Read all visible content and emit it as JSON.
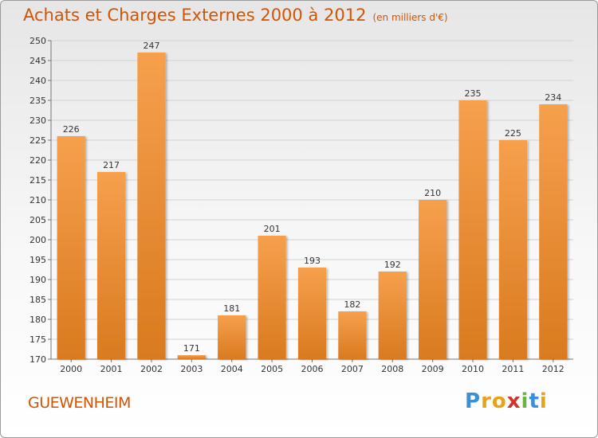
{
  "header": {
    "title": "Achats et Charges Externes 2000 à 2012",
    "subtitle": "(en milliers d'€)"
  },
  "footer": {
    "commune": "GUEWENHEIM",
    "brand": [
      "P",
      "r",
      "o",
      "x",
      "i",
      "t",
      "i"
    ],
    "brand_colors": [
      "#3a8fd6",
      "#e8a21a",
      "#e8a21a",
      "#d0342c",
      "#6ab43e",
      "#3a8fd6",
      "#e8a21a"
    ]
  },
  "colors": {
    "bar_top": "#f6a04d",
    "bar_bottom": "#d97a1f",
    "accent": "#d35400"
  },
  "chart_data": {
    "type": "bar",
    "categories": [
      "2000",
      "2001",
      "2002",
      "2003",
      "2004",
      "2005",
      "2006",
      "2007",
      "2008",
      "2009",
      "2010",
      "2011",
      "2012"
    ],
    "values": [
      226,
      217,
      247,
      171,
      181,
      201,
      193,
      182,
      192,
      210,
      235,
      225,
      234
    ],
    "ylim": [
      170,
      250
    ],
    "yticks": [
      170,
      175,
      180,
      185,
      190,
      195,
      200,
      205,
      210,
      215,
      220,
      225,
      230,
      235,
      240,
      245,
      250
    ],
    "grid": true,
    "title": "Achats et Charges Externes 2000 à 2012",
    "xlabel": "",
    "ylabel": ""
  }
}
